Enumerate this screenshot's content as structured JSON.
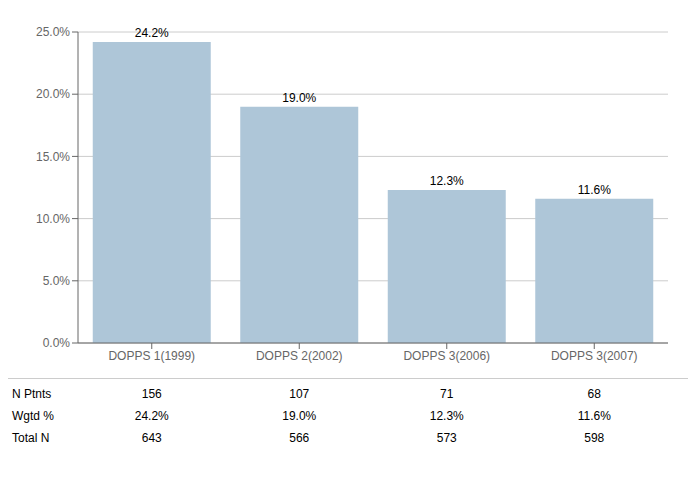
{
  "chart_data": {
    "type": "bar",
    "categories": [
      "DOPPS 1(1999)",
      "DOPPS 2(2002)",
      "DOPPS 3(2006)",
      "DOPPS 3(2007)"
    ],
    "values": [
      24.2,
      19.0,
      12.3,
      11.6
    ],
    "value_labels": [
      "24.2%",
      "19.0%",
      "12.3%",
      "11.6%"
    ],
    "data_labels": true,
    "color": "#aec6d8",
    "ylim": [
      0,
      25
    ],
    "yticks": [
      {
        "value": 0,
        "label": "0.0%"
      },
      {
        "value": 5,
        "label": "5.0%"
      },
      {
        "value": 10,
        "label": "10.0%"
      },
      {
        "value": 15,
        "label": "15.0%"
      },
      {
        "value": 20,
        "label": "20.0%"
      },
      {
        "value": 25,
        "label": "25.0%"
      }
    ],
    "grid": true,
    "table": {
      "row_labels": [
        "N Ptnts",
        "Wgtd %",
        "Total N"
      ],
      "cells": [
        [
          "156",
          "107",
          "71",
          "68"
        ],
        [
          "24.2%",
          "19.0%",
          "12.3%",
          "11.6%"
        ],
        [
          "643",
          "566",
          "573",
          "598"
        ]
      ]
    }
  }
}
